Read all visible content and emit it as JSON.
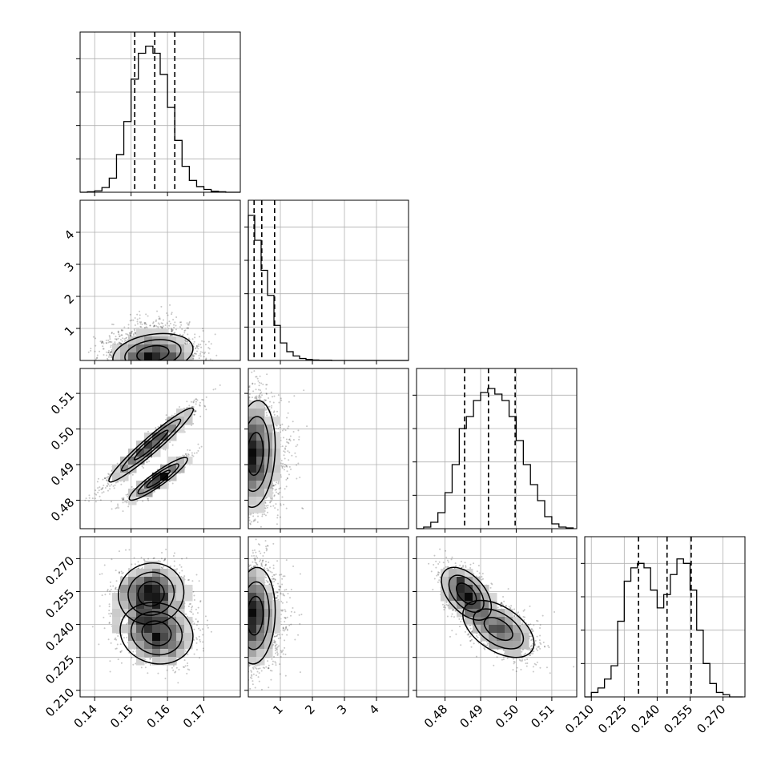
{
  "chart_data": {
    "type": "corner",
    "params": [
      {
        "id": "p0",
        "lim": [
          0.136,
          0.18
        ],
        "ticks": [
          "0.14",
          "0.15",
          "0.16",
          "0.17"
        ],
        "quantiles": [
          0.151,
          0.1565,
          0.162
        ]
      },
      {
        "id": "p1",
        "lim": [
          0.0,
          5.0
        ],
        "ticks": [
          "1",
          "2",
          "3",
          "4"
        ],
        "quantiles": [
          0.18,
          0.42,
          0.82
        ]
      },
      {
        "id": "p2",
        "lim": [
          0.472,
          0.517
        ],
        "ticks": [
          "0.48",
          "0.49",
          "0.50",
          "0.51"
        ],
        "quantiles": [
          0.4855,
          0.4922,
          0.4997
        ]
      },
      {
        "id": "p3",
        "lim": [
          0.207,
          0.28
        ],
        "ticks": [
          "0.210",
          "0.225",
          "0.240",
          "0.255",
          "0.270"
        ],
        "quantiles": [
          0.2315,
          0.2445,
          0.2555
        ]
      }
    ],
    "histograms": [
      {
        "param": "p0",
        "edges": [
          0.136,
          0.138,
          0.14,
          0.142,
          0.144,
          0.146,
          0.148,
          0.15,
          0.152,
          0.154,
          0.156,
          0.158,
          0.16,
          0.162,
          0.164,
          0.166,
          0.168,
          0.17,
          0.172,
          0.174,
          0.176,
          0.178,
          0.18
        ],
        "counts": [
          0,
          1,
          3,
          10,
          30,
          80,
          150,
          240,
          295,
          310,
          295,
          250,
          180,
          110,
          55,
          25,
          12,
          6,
          2,
          1,
          0,
          0
        ],
        "ylim": [
          0,
          340
        ]
      },
      {
        "param": "p1",
        "edges": [
          0.0,
          0.2,
          0.4,
          0.6,
          0.8,
          1.0,
          1.2,
          1.4,
          1.6,
          1.8,
          2.0,
          2.2,
          2.4,
          2.6,
          2.8,
          3.0,
          3.2,
          3.4,
          3.6,
          3.8,
          4.0,
          4.2,
          4.4,
          4.6,
          4.8,
          5.0
        ],
        "counts": [
          580,
          480,
          360,
          260,
          140,
          70,
          35,
          18,
          8,
          4,
          2,
          1,
          1,
          0,
          0,
          0,
          0,
          0,
          0,
          0,
          0,
          0,
          0,
          0,
          0
        ],
        "ylim": [
          0,
          640
        ]
      },
      {
        "param": "p2",
        "edges": [
          0.472,
          0.474,
          0.476,
          0.478,
          0.48,
          0.482,
          0.484,
          0.486,
          0.488,
          0.49,
          0.492,
          0.494,
          0.496,
          0.498,
          0.5,
          0.502,
          0.504,
          0.506,
          0.508,
          0.51,
          0.512,
          0.514,
          0.516
        ],
        "counts": [
          0,
          2,
          8,
          20,
          45,
          80,
          125,
          140,
          160,
          170,
          175,
          168,
          160,
          140,
          110,
          80,
          55,
          35,
          15,
          6,
          2,
          1
        ],
        "ylim": [
          0,
          200
        ]
      },
      {
        "param": "p3",
        "edges": [
          0.207,
          0.21,
          0.213,
          0.216,
          0.219,
          0.222,
          0.225,
          0.228,
          0.231,
          0.234,
          0.237,
          0.24,
          0.243,
          0.246,
          0.249,
          0.252,
          0.255,
          0.258,
          0.261,
          0.264,
          0.267,
          0.27,
          0.273,
          0.276,
          0.279
        ],
        "counts": [
          0,
          2,
          4,
          8,
          14,
          34,
          52,
          58,
          60,
          58,
          48,
          40,
          46,
          55,
          62,
          60,
          48,
          30,
          15,
          6,
          2,
          1,
          0,
          0
        ],
        "ylim": [
          0,
          72
        ]
      }
    ],
    "pairs": [
      {
        "x": "p0",
        "y": "p1",
        "blobs": [
          {
            "cx": 0.156,
            "cy": 0.35,
            "sx": 0.0055,
            "sy": 0.35,
            "rho": 0.25,
            "w": 1
          }
        ]
      },
      {
        "x": "p0",
        "y": "p2",
        "blobs": [
          {
            "cx": 0.1555,
            "cy": 0.4955,
            "sx": 0.0058,
            "sy": 0.0052,
            "rho": 0.96,
            "w": 0.6
          },
          {
            "cx": 0.1575,
            "cy": 0.486,
            "sx": 0.004,
            "sy": 0.003,
            "rho": 0.92,
            "w": 0.4
          }
        ]
      },
      {
        "x": "p1",
        "y": "p2",
        "blobs": [
          {
            "cx": 0.25,
            "cy": 0.493,
            "sx": 0.35,
            "sy": 0.0075,
            "rho": 0.15,
            "w": 1
          }
        ]
      },
      {
        "x": "p0",
        "y": "p3",
        "blobs": [
          {
            "cx": 0.1555,
            "cy": 0.254,
            "sx": 0.0045,
            "sy": 0.007,
            "rho": 0.05,
            "w": 0.5
          },
          {
            "cx": 0.157,
            "cy": 0.236,
            "sx": 0.005,
            "sy": 0.007,
            "rho": -0.1,
            "w": 0.5
          }
        ]
      },
      {
        "x": "p1",
        "y": "p3",
        "blobs": [
          {
            "cx": 0.25,
            "cy": 0.244,
            "sx": 0.35,
            "sy": 0.011,
            "rho": 0.1,
            "w": 1
          }
        ]
      },
      {
        "x": "p2",
        "y": "p3",
        "blobs": [
          {
            "cx": 0.486,
            "cy": 0.254,
            "sx": 0.0035,
            "sy": 0.006,
            "rho": -0.5,
            "w": 0.5
          },
          {
            "cx": 0.495,
            "cy": 0.238,
            "sx": 0.005,
            "sy": 0.0065,
            "rho": -0.5,
            "w": 0.5
          }
        ]
      }
    ]
  }
}
